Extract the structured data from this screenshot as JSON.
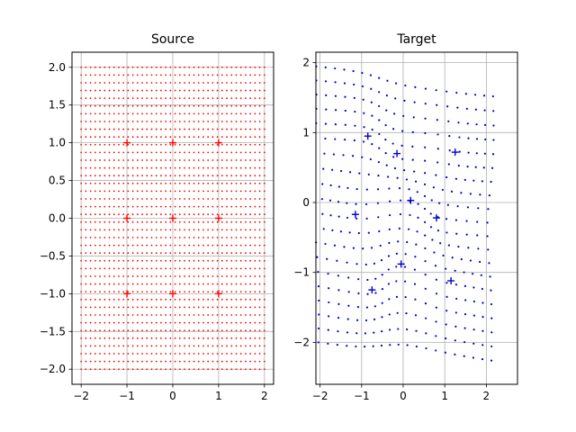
{
  "chart_data": [
    {
      "type": "scatter",
      "title": "Source",
      "xlim": [
        -2.2,
        2.2
      ],
      "ylim": [
        -2.2,
        2.2
      ],
      "grid": true,
      "xticks": [
        -2,
        -1,
        0,
        1,
        2
      ],
      "xtick_labels": [
        "−2",
        "−1",
        "0",
        "1",
        "2"
      ],
      "yticks": [
        -2.0,
        -1.5,
        -1.0,
        -0.5,
        0.0,
        0.5,
        1.0,
        1.5,
        2.0
      ],
      "ytick_labels": [
        "−2.0",
        "−1.5",
        "−1.0",
        "−0.5",
        "0.0",
        "0.5",
        "1.0",
        "1.5",
        "2.0"
      ],
      "grid_points": {
        "x_min": -2,
        "x_max": 2,
        "x_count": 40,
        "y_min": -2,
        "y_max": 2,
        "y_count": 40
      },
      "control_points": [
        [
          -1,
          1
        ],
        [
          0,
          1
        ],
        [
          1,
          1
        ],
        [
          -1,
          0
        ],
        [
          0,
          0
        ],
        [
          1,
          0
        ],
        [
          -1,
          -1
        ],
        [
          0,
          -1
        ],
        [
          1,
          -1
        ]
      ],
      "color": "#ff0000"
    },
    {
      "type": "scatter",
      "title": "Target",
      "xlim": [
        -2.1,
        2.75
      ],
      "ylim": [
        -2.6,
        2.15
      ],
      "grid": true,
      "xticks": [
        -2,
        -1,
        0,
        1,
        2
      ],
      "xtick_labels": [
        "−2",
        "−1",
        "0",
        "1",
        "2"
      ],
      "yticks": [
        -2,
        -1,
        0,
        1,
        2
      ],
      "ytick_labels": [
        "−2",
        "−1",
        "0",
        "1",
        "2"
      ],
      "control_points": [
        [
          -0.85,
          0.95
        ],
        [
          -0.15,
          0.7
        ],
        [
          1.25,
          0.72
        ],
        [
          -1.15,
          -0.17
        ],
        [
          0.18,
          0.03
        ],
        [
          0.8,
          -0.22
        ],
        [
          -0.75,
          -1.25
        ],
        [
          -0.05,
          -0.88
        ],
        [
          1.15,
          -1.12
        ]
      ],
      "color": "#0000cc"
    }
  ]
}
